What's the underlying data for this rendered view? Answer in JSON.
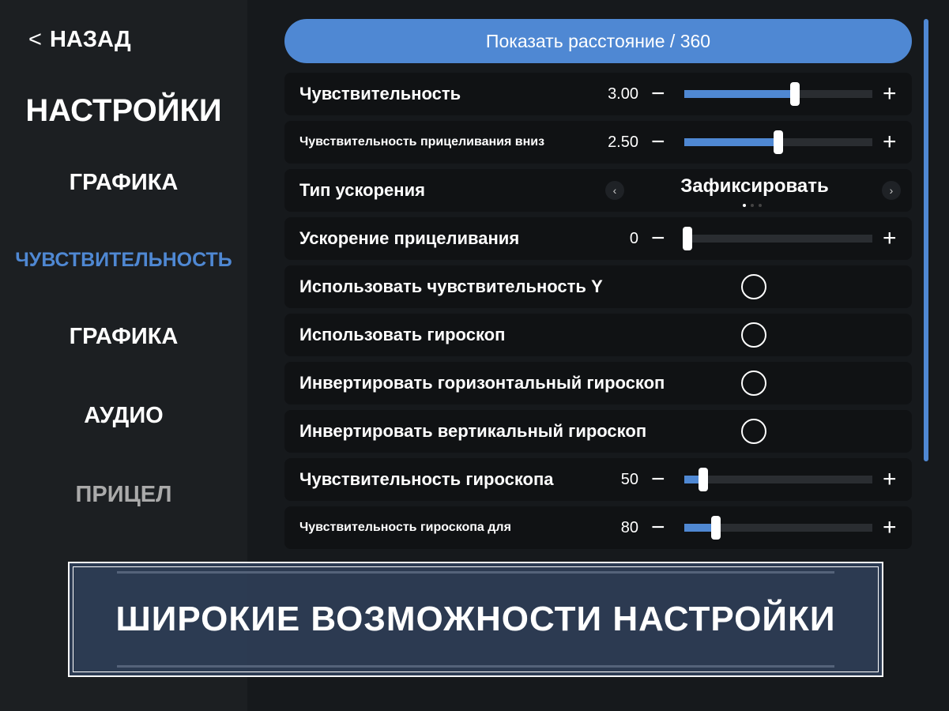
{
  "sidebar": {
    "back_label": "НАЗАД",
    "title": "НАСТРОЙКИ",
    "items": [
      {
        "label": "ГРАФИКА"
      },
      {
        "label": "ЧУВСТВИТЕЛЬНОСТЬ"
      },
      {
        "label": "ГРАФИКА"
      },
      {
        "label": "АУДИО"
      },
      {
        "label": "ПРИЦЕЛ"
      }
    ]
  },
  "main": {
    "show_distance_label": "Показать расстояние / 360",
    "rows": [
      {
        "label": "Чувствительность",
        "value": "3.00",
        "fraction": 0.59
      },
      {
        "label": "Чувствительность прицеливания вниз",
        "value": "2.50",
        "fraction": 0.5
      },
      {
        "label": "Тип ускорения",
        "selected": "Зафиксировать",
        "page": 1,
        "pages": 3
      },
      {
        "label": "Ускорение прицеливания",
        "value": "0",
        "fraction": 0
      },
      {
        "label": "Использовать чувствительность Y",
        "checked": false
      },
      {
        "label": "Использовать гироскоп",
        "checked": false
      },
      {
        "label": "Инвертировать горизонтальный гироскоп",
        "checked": false
      },
      {
        "label": "Инвертировать вертикальный гироскоп",
        "checked": false
      },
      {
        "label": "Чувствительность гироскопа",
        "value": "50",
        "fraction": 0.1
      },
      {
        "label": "Чувствительность гироскопа для",
        "value": "80",
        "fraction": 0.17
      }
    ]
  },
  "banner": {
    "text": "ШИРОКИЕ ВОЗМОЖНОСТИ НАСТРОЙКИ"
  },
  "colors": {
    "accent": "#4f88d3",
    "sidebar_bg": "#1c1f22",
    "row_bg": "#101214",
    "banner_bg": "#2d3c54"
  }
}
